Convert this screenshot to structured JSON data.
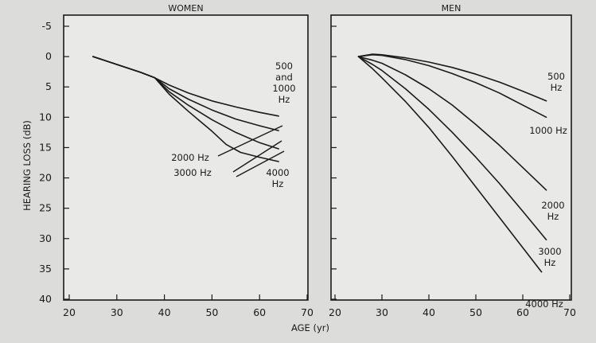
{
  "chart_data": {
    "type": "line",
    "ylabel": "HEARING LOSS (dB)",
    "xlabel": "AGE (yr)",
    "ylim": [
      40,
      -5
    ],
    "yticks": [
      "-5",
      "0",
      "5",
      "10",
      "15",
      "20",
      "25",
      "30",
      "35",
      "40"
    ],
    "panels": [
      {
        "title": "WOMEN",
        "xlim": [
          20,
          70
        ],
        "xticks": [
          "20",
          "30",
          "40",
          "50",
          "60",
          "70"
        ],
        "series": [
          {
            "name": "500 and 1000 Hz",
            "label_lines": [
              "500",
              "and",
              "1000",
              "Hz"
            ],
            "x": [
              25,
              30,
              35,
              38,
              41,
              45,
              50,
              55,
              60,
              64
            ],
            "y": [
              0,
              1.3,
              2.6,
              3.5,
              4.7,
              6.0,
              7.3,
              8.3,
              9.2,
              9.8
            ]
          },
          {
            "name": "2000 Hz",
            "label_lines": [
              "2000 Hz"
            ],
            "x": [
              25,
              30,
              35,
              38,
              41,
              45,
              50,
              55,
              60,
              64
            ],
            "y": [
              0,
              1.3,
              2.6,
              3.5,
              5.3,
              7.0,
              8.8,
              10.3,
              11.4,
              12.2
            ]
          },
          {
            "name": "3000 Hz",
            "label_lines": [
              "3000 Hz"
            ],
            "x": [
              25,
              30,
              35,
              38,
              41,
              45,
              50,
              55,
              60,
              64
            ],
            "y": [
              0,
              1.3,
              2.6,
              3.5,
              5.8,
              8.0,
              10.4,
              12.5,
              14.2,
              15.2
            ]
          },
          {
            "name": "4000 Hz",
            "label_lines": [
              "4000",
              "Hz"
            ],
            "x": [
              25,
              30,
              35,
              38,
              41,
              45,
              50,
              53,
              56,
              60,
              64
            ],
            "y": [
              0,
              1.3,
              2.6,
              3.5,
              6.2,
              9.0,
              12.3,
              14.5,
              15.8,
              16.6,
              17.3
            ]
          }
        ]
      },
      {
        "title": "MEN",
        "xlim": [
          20,
          70
        ],
        "xticks": [
          "20",
          "30",
          "40",
          "50",
          "60",
          "70"
        ],
        "series": [
          {
            "name": "500 Hz",
            "label_lines": [
              "500",
              "Hz"
            ],
            "x": [
              25,
              28,
              30,
              35,
              40,
              45,
              50,
              55,
              60,
              65
            ],
            "y": [
              0,
              -0.4,
              -0.3,
              0.2,
              0.9,
              1.8,
              2.9,
              4.2,
              5.7,
              7.3
            ]
          },
          {
            "name": "1000 Hz",
            "label_lines": [
              "1000 Hz"
            ],
            "x": [
              25,
              28,
              30,
              35,
              40,
              45,
              50,
              55,
              60,
              65
            ],
            "y": [
              0,
              -0.3,
              -0.2,
              0.5,
              1.5,
              2.8,
              4.3,
              6.0,
              8.0,
              10.0
            ]
          },
          {
            "name": "2000 Hz",
            "label_lines": [
              "2000",
              "Hz"
            ],
            "x": [
              25,
              28,
              30,
              35,
              40,
              45,
              50,
              55,
              60,
              65
            ],
            "y": [
              0,
              0.6,
              1.1,
              3.0,
              5.3,
              8.0,
              11.2,
              14.6,
              18.3,
              22.0
            ]
          },
          {
            "name": "3000 Hz",
            "label_lines": [
              "3000",
              "Hz"
            ],
            "x": [
              25,
              28,
              30,
              35,
              40,
              45,
              50,
              55,
              60,
              65
            ],
            "y": [
              0,
              1.3,
              2.3,
              5.3,
              8.7,
              12.5,
              16.6,
              20.9,
              25.5,
              30.2
            ]
          },
          {
            "name": "4000 Hz",
            "label_lines": [
              "4000 Hz"
            ],
            "x": [
              25,
              28,
              30,
              35,
              40,
              45,
              50,
              55,
              60,
              64
            ],
            "y": [
              0,
              2.0,
              3.5,
              7.4,
              11.7,
              16.5,
              21.5,
              26.5,
              31.5,
              35.5
            ]
          }
        ]
      }
    ]
  }
}
